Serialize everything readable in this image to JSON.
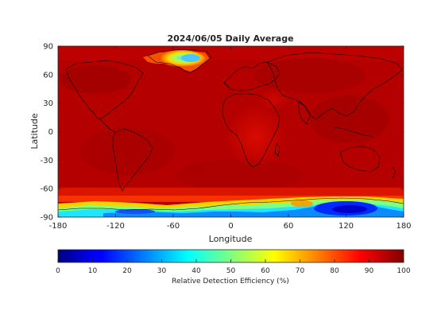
{
  "chart_data": {
    "type": "heatmap",
    "title": "2024/06/05 Daily Average",
    "xlabel": "Longitude",
    "ylabel": "Latitude",
    "xlim": [
      -180,
      180
    ],
    "ylim": [
      -90,
      90
    ],
    "xticks": [
      -180,
      -120,
      -60,
      0,
      60,
      120,
      180
    ],
    "yticks": [
      90,
      60,
      30,
      0,
      -30,
      -60,
      -90
    ],
    "colorbar": {
      "label": "Relative Detection Efficiency (%)",
      "ticks": [
        0,
        10,
        20,
        30,
        40,
        50,
        60,
        70,
        80,
        90,
        100
      ],
      "range": [
        0,
        100
      ],
      "colormap": "jet",
      "placement": "bottom"
    },
    "background_value": 95,
    "features": [
      {
        "region": "Greenland ice sheet",
        "lon_range": [
          -60,
          -25
        ],
        "lat_range": [
          63,
          82
        ],
        "min_value": 25
      },
      {
        "region": "Antarctica (East)",
        "lon_range": [
          40,
          170
        ],
        "lat_range": [
          -90,
          -68
        ],
        "min_value": 5
      },
      {
        "region": "Antarctica (West)",
        "lon_range": [
          -180,
          40
        ],
        "lat_range": [
          -90,
          -75
        ],
        "min_value": 20
      },
      {
        "region": "Central Africa",
        "lon_range": [
          10,
          45
        ],
        "lat_range": [
          -10,
          15
        ],
        "min_value": 84
      },
      {
        "region": "Southern Ocean belt",
        "lon_range": [
          -180,
          180
        ],
        "lat_range": [
          -75,
          -58
        ],
        "min_value": 82
      }
    ],
    "grid": false,
    "coastlines": true
  }
}
